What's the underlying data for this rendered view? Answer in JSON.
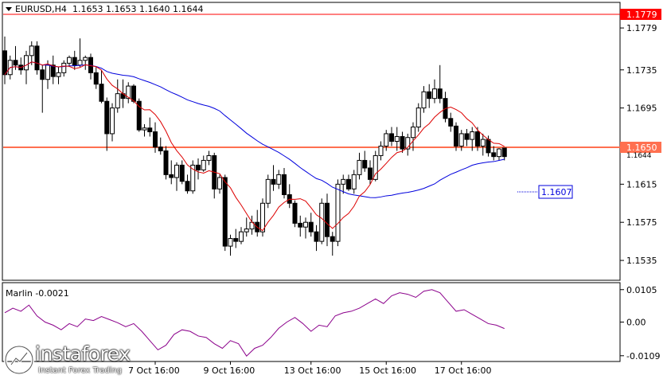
{
  "header": {
    "symbol": "EURUSD,H4",
    "open": "1.1653",
    "high": "1.1653",
    "low": "1.1640",
    "close": "1.1644"
  },
  "indicator": {
    "label": "Marlin -0.0021",
    "axis_ticks": [
      "0.0105",
      "0.00",
      "-0.0109"
    ]
  },
  "levels": {
    "resistance": "1.1779",
    "current": "1.1650",
    "current_small": "1.1644",
    "ma_value": "1.1607"
  },
  "watermark": {
    "brand": "instaforex",
    "tagline": "Instant Forex Trading"
  },
  "colors": {
    "bull": "#ffffff",
    "bear": "#000000",
    "ma_fast": "#dd0000",
    "ma_slow": "#0000dd",
    "resistance": "#ff0000",
    "current_line": "#ff7050",
    "oscillator": "#8b008b"
  },
  "chart_data": [
    {
      "type": "candlestick",
      "title": "EURUSD,H4",
      "ylim": [
        1.1515,
        1.1805
      ],
      "y_ticks": [
        "1.1779",
        "1.1735",
        "1.1695",
        "1.1655",
        "1.1615",
        "1.1575",
        "1.1535"
      ],
      "x_ticks": [
        "7 Oct 16:00",
        "9 Oct 16:00",
        "13 Oct 16:00",
        "15 Oct 16:00",
        "17 Oct 16:00"
      ],
      "candles": [
        [
          1.1755,
          1.177,
          1.172,
          1.173
        ],
        [
          1.173,
          1.175,
          1.1725,
          1.1745
        ],
        [
          1.1745,
          1.176,
          1.1735,
          1.174
        ],
        [
          1.174,
          1.1748,
          1.173,
          1.1735
        ],
        [
          1.1735,
          1.1755,
          1.172,
          1.175
        ],
        [
          1.175,
          1.1765,
          1.174,
          1.176
        ],
        [
          1.176,
          1.1765,
          1.173,
          1.1735
        ],
        [
          1.1735,
          1.174,
          1.169,
          1.1725
        ],
        [
          1.1725,
          1.1745,
          1.1715,
          1.174
        ],
        [
          1.174,
          1.175,
          1.172,
          1.1728
        ],
        [
          1.1728,
          1.1738,
          1.172,
          1.1732
        ],
        [
          1.1732,
          1.1745,
          1.1728,
          1.1742
        ],
        [
          1.1742,
          1.175,
          1.1738,
          1.1748
        ],
        [
          1.1748,
          1.1755,
          1.1735,
          1.174
        ],
        [
          1.174,
          1.1768,
          1.1738,
          1.1745
        ],
        [
          1.1745,
          1.175,
          1.1735,
          1.1748
        ],
        [
          1.1748,
          1.1752,
          1.1725,
          1.1732
        ],
        [
          1.1732,
          1.1738,
          1.1715,
          1.172
        ],
        [
          1.172,
          1.1735,
          1.17,
          1.1702
        ],
        [
          1.1702,
          1.1706,
          1.165,
          1.1668
        ],
        [
          1.1668,
          1.17,
          1.166,
          1.1695
        ],
        [
          1.1695,
          1.1725,
          1.169,
          1.171
        ],
        [
          1.171,
          1.1725,
          1.1695,
          1.1705
        ],
        [
          1.1705,
          1.1722,
          1.17,
          1.1718
        ],
        [
          1.1718,
          1.172,
          1.17,
          1.1702
        ],
        [
          1.1702,
          1.1705,
          1.167,
          1.1672
        ],
        [
          1.1672,
          1.1678,
          1.1665,
          1.1674
        ],
        [
          1.1674,
          1.1685,
          1.1665,
          1.167
        ],
        [
          1.167,
          1.168,
          1.1648,
          1.1654
        ],
        [
          1.1654,
          1.1664,
          1.1646,
          1.165
        ],
        [
          1.165,
          1.1655,
          1.162,
          1.1625
        ],
        [
          1.1625,
          1.164,
          1.1615,
          1.1622
        ],
        [
          1.1622,
          1.1638,
          1.1608,
          1.1635
        ],
        [
          1.1635,
          1.164,
          1.1615,
          1.1618
        ],
        [
          1.1618,
          1.1625,
          1.1605,
          1.1608
        ],
        [
          1.1608,
          1.164,
          1.1605,
          1.1635
        ],
        [
          1.1635,
          1.1642,
          1.162,
          1.163
        ],
        [
          1.163,
          1.1645,
          1.1628,
          1.164
        ],
        [
          1.164,
          1.165,
          1.1635,
          1.1645
        ],
        [
          1.1645,
          1.1648,
          1.16,
          1.161
        ],
        [
          1.161,
          1.1625,
          1.1605,
          1.1622
        ],
        [
          1.1622,
          1.1625,
          1.1545,
          1.155
        ],
        [
          1.155,
          1.1562,
          1.154,
          1.1558
        ],
        [
          1.1558,
          1.1568,
          1.1548,
          1.1555
        ],
        [
          1.1555,
          1.157,
          1.1552,
          1.1565
        ],
        [
          1.1565,
          1.158,
          1.156,
          1.1568
        ],
        [
          1.1568,
          1.1582,
          1.1562,
          1.1575
        ],
        [
          1.1575,
          1.1588,
          1.156,
          1.1565
        ],
        [
          1.1565,
          1.16,
          1.156,
          1.1595
        ],
        [
          1.1595,
          1.1625,
          1.159,
          1.162
        ],
        [
          1.162,
          1.1635,
          1.1608,
          1.1615
        ],
        [
          1.1615,
          1.163,
          1.161,
          1.1625
        ],
        [
          1.1625,
          1.1632,
          1.16,
          1.1604
        ],
        [
          1.1604,
          1.1615,
          1.159,
          1.1595
        ],
        [
          1.1595,
          1.1598,
          1.157,
          1.1574
        ],
        [
          1.1574,
          1.1582,
          1.156,
          1.157
        ],
        [
          1.157,
          1.158,
          1.1558,
          1.1575
        ],
        [
          1.1575,
          1.1585,
          1.156,
          1.1565
        ],
        [
          1.1565,
          1.1572,
          1.1545,
          1.1555
        ],
        [
          1.1555,
          1.16,
          1.1552,
          1.1595
        ],
        [
          1.1595,
          1.1605,
          1.155,
          1.156
        ],
        [
          1.156,
          1.1565,
          1.154,
          1.1555
        ],
        [
          1.1555,
          1.162,
          1.155,
          1.1615
        ],
        [
          1.1615,
          1.1625,
          1.1605,
          1.162
        ],
        [
          1.162,
          1.1625,
          1.1608,
          1.161
        ],
        [
          1.161,
          1.163,
          1.1605,
          1.1625
        ],
        [
          1.1625,
          1.1648,
          1.162,
          1.164
        ],
        [
          1.164,
          1.165,
          1.1628,
          1.1632
        ],
        [
          1.1632,
          1.164,
          1.1615,
          1.162
        ],
        [
          1.162,
          1.165,
          1.1618,
          1.1645
        ],
        [
          1.1645,
          1.166,
          1.164,
          1.1655
        ],
        [
          1.1655,
          1.1672,
          1.165,
          1.1668
        ],
        [
          1.1668,
          1.1675,
          1.1655,
          1.166
        ],
        [
          1.166,
          1.1675,
          1.165,
          1.1665
        ],
        [
          1.1665,
          1.167,
          1.1648,
          1.1652
        ],
        [
          1.1652,
          1.1668,
          1.1645,
          1.1664
        ],
        [
          1.1664,
          1.168,
          1.165,
          1.1675
        ],
        [
          1.1675,
          1.17,
          1.167,
          1.1695
        ],
        [
          1.1695,
          1.1718,
          1.169,
          1.1712
        ],
        [
          1.1712,
          1.172,
          1.1695,
          1.1705
        ],
        [
          1.1705,
          1.1725,
          1.17,
          1.1715
        ],
        [
          1.1715,
          1.174,
          1.17,
          1.1705
        ],
        [
          1.1705,
          1.1712,
          1.168,
          1.1684
        ],
        [
          1.1684,
          1.169,
          1.167,
          1.1676
        ],
        [
          1.1676,
          1.168,
          1.165,
          1.1655
        ],
        [
          1.1655,
          1.1672,
          1.165,
          1.1668
        ],
        [
          1.1668,
          1.1673,
          1.1655,
          1.1662
        ],
        [
          1.1662,
          1.1675,
          1.165,
          1.167
        ],
        [
          1.167,
          1.1675,
          1.165,
          1.1655
        ],
        [
          1.1655,
          1.1668,
          1.1645,
          1.1662
        ],
        [
          1.1662,
          1.1666,
          1.1644,
          1.1648
        ],
        [
          1.1648,
          1.1655,
          1.164,
          1.1644
        ],
        [
          1.1644,
          1.1653,
          1.164,
          1.1652
        ],
        [
          1.1653,
          1.1653,
          1.164,
          1.1644
        ]
      ]
    },
    {
      "type": "line",
      "title": "Marlin -0.0021",
      "ylim": [
        -0.0125,
        0.0125
      ],
      "y_ticks": [
        "0.0105",
        "0.00",
        "-0.0109"
      ],
      "values": [
        0.003,
        0.0045,
        0.0035,
        0.0055,
        0.002,
        0.0,
        -0.001,
        -0.0025,
        -0.0005,
        -0.0015,
        0.001,
        0.0005,
        0.0018,
        0.0008,
        -0.0002,
        -0.0015,
        -0.0005,
        -0.003,
        -0.006,
        -0.009,
        -0.0075,
        -0.004,
        -0.0025,
        -0.003,
        -0.0045,
        -0.005,
        -0.007,
        -0.0085,
        -0.006,
        -0.007,
        -0.011,
        -0.0085,
        -0.0075,
        -0.005,
        -0.002,
        0.0,
        0.0015,
        -0.0005,
        -0.003,
        -0.001,
        -0.0015,
        0.002,
        0.003,
        0.0035,
        0.0045,
        0.006,
        0.0075,
        0.006,
        0.0085,
        0.0095,
        0.009,
        0.008,
        0.01,
        0.0105,
        0.0095,
        0.0065,
        0.0035,
        0.004,
        0.0025,
        0.001,
        -0.0005,
        -0.001,
        -0.0021
      ]
    }
  ]
}
